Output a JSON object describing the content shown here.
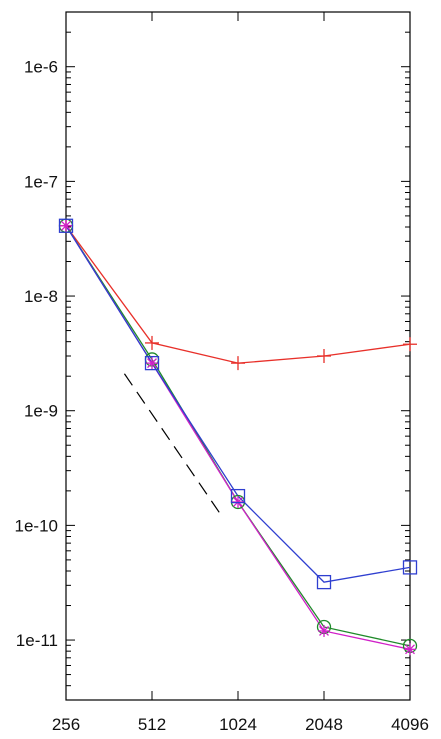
{
  "chart_data": {
    "type": "line",
    "title": "",
    "xlabel": "",
    "ylabel": "",
    "x_scale": "log2",
    "y_scale": "log10",
    "x": [
      256,
      512,
      1024,
      2048,
      4096
    ],
    "xticks": [
      256,
      512,
      1024,
      2048,
      4096
    ],
    "xtick_labels": [
      "256",
      "512",
      "1024",
      "2048",
      "4096"
    ],
    "yticks": [
      1e-11,
      1e-10,
      1e-09,
      1e-08,
      1e-07,
      1e-06
    ],
    "ytick_labels": [
      "1e-11",
      "1e-10",
      "1e-9",
      "1e-8",
      "1e-7",
      "1e-6"
    ],
    "xlim": [
      256,
      4096
    ],
    "ylim": [
      3e-12,
      3e-06
    ],
    "grid": false,
    "legend": "none",
    "series": [
      {
        "marker": "plus",
        "color": "#e8302a",
        "values": [
          4.1e-08,
          3.9e-09,
          2.6e-09,
          3e-09,
          3.8e-09
        ]
      },
      {
        "marker": "circle",
        "color": "#1f8a2a",
        "values": [
          4.1e-08,
          2.8e-09,
          1.6e-10,
          1.3e-11,
          8.9e-12
        ]
      },
      {
        "marker": "asterisk",
        "color": "#d020c8",
        "values": [
          4.1e-08,
          2.6e-09,
          1.6e-10,
          1.2e-11,
          8.3e-12
        ]
      },
      {
        "marker": "square",
        "color": "#2f3fd0",
        "values": [
          4.1e-08,
          2.6e-09,
          1.8e-10,
          3.2e-11,
          4.3e-11
        ]
      }
    ],
    "reference_line": {
      "style": "dashed",
      "color": "#000000",
      "x": [
        410,
        880
      ],
      "y": [
        2.1e-09,
        1.3e-10
      ]
    }
  }
}
